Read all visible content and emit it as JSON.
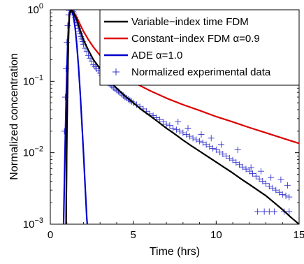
{
  "chart_data": {
    "type": "line",
    "xlabel": "Time (hrs)",
    "ylabel": "Normalized concentration",
    "xlim": [
      0,
      15
    ],
    "ylim": [
      0.001,
      1
    ],
    "yscale": "log",
    "x_ticks": [
      "0",
      "5",
      "10",
      "15"
    ],
    "x_tick_values": [
      0,
      5,
      10,
      15
    ],
    "y_ticks": [
      {
        "base": "10",
        "exp": "0",
        "value": 1
      },
      {
        "base": "10",
        "exp": "−1",
        "value": 0.1
      },
      {
        "base": "10",
        "exp": "−2",
        "value": 0.01
      },
      {
        "base": "10",
        "exp": "−3",
        "value": 0.001
      }
    ],
    "grid": false,
    "legend_position": "top-right",
    "series": [
      {
        "name": "Variable−index time FDM",
        "color": "#000000",
        "style": "line",
        "points": [
          [
            0.95,
            0.001
          ],
          [
            1.0,
            0.02
          ],
          [
            1.05,
            0.12
          ],
          [
            1.1,
            0.45
          ],
          [
            1.15,
            0.85
          ],
          [
            1.25,
            1.0
          ],
          [
            1.4,
            0.92
          ],
          [
            1.6,
            0.72
          ],
          [
            1.8,
            0.52
          ],
          [
            2.0,
            0.38
          ],
          [
            2.3,
            0.27
          ],
          [
            2.6,
            0.2
          ],
          [
            3.0,
            0.15
          ],
          [
            3.5,
            0.105
          ],
          [
            4.0,
            0.08
          ],
          [
            4.5,
            0.062
          ],
          [
            5.0,
            0.05
          ],
          [
            5.5,
            0.04
          ],
          [
            6.0,
            0.033
          ],
          [
            6.5,
            0.027
          ],
          [
            7.0,
            0.022
          ],
          [
            7.5,
            0.0183
          ],
          [
            8.0,
            0.015
          ],
          [
            8.5,
            0.0125
          ],
          [
            9.0,
            0.0105
          ],
          [
            9.5,
            0.0088
          ],
          [
            10.0,
            0.0074
          ],
          [
            10.5,
            0.0062
          ],
          [
            11.0,
            0.0052
          ],
          [
            11.5,
            0.0043
          ],
          [
            12.0,
            0.0036
          ],
          [
            12.5,
            0.003
          ],
          [
            13.0,
            0.0025
          ],
          [
            13.5,
            0.002
          ],
          [
            14.0,
            0.0016
          ],
          [
            14.5,
            0.00125
          ],
          [
            15.0,
            0.001
          ]
        ]
      },
      {
        "name": "Constant−index FDM α=0.9",
        "color": "#dd0000",
        "style": "line",
        "points": [
          [
            0.95,
            0.001
          ],
          [
            1.0,
            0.02
          ],
          [
            1.05,
            0.12
          ],
          [
            1.1,
            0.45
          ],
          [
            1.15,
            0.85
          ],
          [
            1.25,
            1.0
          ],
          [
            1.4,
            0.93
          ],
          [
            1.6,
            0.78
          ],
          [
            1.8,
            0.62
          ],
          [
            2.0,
            0.5
          ],
          [
            2.3,
            0.38
          ],
          [
            2.6,
            0.3
          ],
          [
            3.0,
            0.23
          ],
          [
            3.5,
            0.175
          ],
          [
            4.0,
            0.14
          ],
          [
            4.5,
            0.115
          ],
          [
            5.0,
            0.097
          ],
          [
            6.0,
            0.074
          ],
          [
            7.0,
            0.058
          ],
          [
            8.0,
            0.047
          ],
          [
            9.0,
            0.039
          ],
          [
            10.0,
            0.032
          ],
          [
            11.0,
            0.027
          ],
          [
            12.0,
            0.0225
          ],
          [
            13.0,
            0.019
          ],
          [
            14.0,
            0.016
          ],
          [
            15.0,
            0.0135
          ]
        ]
      },
      {
        "name": "ADE α=1.0",
        "color": "#0000cc",
        "style": "line",
        "points": [
          [
            0.8,
            0.001
          ],
          [
            0.85,
            0.004
          ],
          [
            0.9,
            0.015
          ],
          [
            0.95,
            0.05
          ],
          [
            1.0,
            0.15
          ],
          [
            1.05,
            0.35
          ],
          [
            1.1,
            0.6
          ],
          [
            1.15,
            0.83
          ],
          [
            1.2,
            0.97
          ],
          [
            1.25,
            1.0
          ],
          [
            1.3,
            0.97
          ],
          [
            1.4,
            0.8
          ],
          [
            1.5,
            0.55
          ],
          [
            1.6,
            0.32
          ],
          [
            1.7,
            0.16
          ],
          [
            1.8,
            0.07
          ],
          [
            1.9,
            0.027
          ],
          [
            2.0,
            0.01
          ],
          [
            2.1,
            0.0034
          ],
          [
            2.2,
            0.0012
          ],
          [
            2.23,
            0.001
          ]
        ]
      },
      {
        "name": "Normalized experimental data",
        "color": "#3333cc",
        "style": "plus",
        "points": [
          [
            0.85,
            0.02
          ],
          [
            0.9,
            0.06
          ],
          [
            0.95,
            0.15
          ],
          [
            1.0,
            0.35
          ],
          [
            1.05,
            0.6
          ],
          [
            1.1,
            0.85
          ],
          [
            1.15,
            0.97
          ],
          [
            1.2,
            1.0
          ],
          [
            1.25,
            1.0
          ],
          [
            1.3,
            0.98
          ],
          [
            1.35,
            0.95
          ],
          [
            1.4,
            0.9
          ],
          [
            1.45,
            0.85
          ],
          [
            1.5,
            0.78
          ],
          [
            1.55,
            0.72
          ],
          [
            1.6,
            0.66
          ],
          [
            1.65,
            0.6
          ],
          [
            1.7,
            0.55
          ],
          [
            1.75,
            0.5
          ],
          [
            1.8,
            0.46
          ],
          [
            1.85,
            0.42
          ],
          [
            1.9,
            0.39
          ],
          [
            1.95,
            0.36
          ],
          [
            2.0,
            0.33
          ],
          [
            2.1,
            0.29
          ],
          [
            2.2,
            0.26
          ],
          [
            2.3,
            0.23
          ],
          [
            2.4,
            0.21
          ],
          [
            2.5,
            0.19
          ],
          [
            2.6,
            0.17
          ],
          [
            2.7,
            0.16
          ],
          [
            2.8,
            0.15
          ],
          [
            2.9,
            0.14
          ],
          [
            3.0,
            0.13
          ],
          [
            3.1,
            0.12
          ],
          [
            3.2,
            0.115
          ],
          [
            3.3,
            0.108
          ],
          [
            3.4,
            0.1
          ],
          [
            3.5,
            0.095
          ],
          [
            3.6,
            0.09
          ],
          [
            3.7,
            0.086
          ],
          [
            3.8,
            0.082
          ],
          [
            3.9,
            0.078
          ],
          [
            4.0,
            0.075
          ],
          [
            4.1,
            0.072
          ],
          [
            4.2,
            0.069
          ],
          [
            4.3,
            0.066
          ],
          [
            4.4,
            0.063
          ],
          [
            4.5,
            0.06
          ],
          [
            4.6,
            0.058
          ],
          [
            4.7,
            0.056
          ],
          [
            4.8,
            0.054
          ],
          [
            4.9,
            0.052
          ],
          [
            5.0,
            0.05
          ],
          [
            5.2,
            0.047
          ],
          [
            5.4,
            0.044
          ],
          [
            5.6,
            0.041
          ],
          [
            5.8,
            0.038
          ],
          [
            6.0,
            0.035
          ],
          [
            6.2,
            0.033
          ],
          [
            6.4,
            0.031
          ],
          [
            6.6,
            0.029
          ],
          [
            6.8,
            0.027
          ],
          [
            7.0,
            0.025
          ],
          [
            7.2,
            0.024
          ],
          [
            7.4,
            0.022
          ],
          [
            7.6,
            0.021
          ],
          [
            7.8,
            0.02
          ],
          [
            8.0,
            0.019
          ],
          [
            8.2,
            0.018
          ],
          [
            8.4,
            0.017
          ],
          [
            8.6,
            0.016
          ],
          [
            8.8,
            0.0152
          ],
          [
            9.0,
            0.0145
          ],
          [
            9.2,
            0.0138
          ],
          [
            9.4,
            0.013
          ],
          [
            9.6,
            0.0122
          ],
          [
            9.8,
            0.0115
          ],
          [
            10.0,
            0.011
          ],
          [
            10.2,
            0.0102
          ],
          [
            10.4,
            0.0096
          ],
          [
            10.6,
            0.009
          ],
          [
            10.8,
            0.0084
          ],
          [
            11.0,
            0.0079
          ],
          [
            11.2,
            0.0073
          ],
          [
            11.4,
            0.0068
          ],
          [
            11.6,
            0.0063
          ],
          [
            11.8,
            0.0059
          ],
          [
            12.0,
            0.0055
          ],
          [
            12.2,
            0.0051
          ],
          [
            12.4,
            0.0047
          ],
          [
            12.6,
            0.0043
          ],
          [
            12.8,
            0.004
          ],
          [
            13.0,
            0.0037
          ],
          [
            13.2,
            0.0034
          ],
          [
            13.4,
            0.0032
          ],
          [
            13.6,
            0.003
          ],
          [
            13.8,
            0.0028
          ],
          [
            14.0,
            0.0026
          ],
          [
            14.2,
            0.0025
          ],
          [
            14.4,
            0.0024
          ],
          [
            7.7,
            0.027
          ],
          [
            8.3,
            0.022
          ],
          [
            9.1,
            0.018
          ],
          [
            9.7,
            0.016
          ],
          [
            10.3,
            0.013
          ],
          [
            11.3,
            0.011
          ],
          [
            12.1,
            0.0062
          ],
          [
            12.7,
            0.0055
          ],
          [
            13.3,
            0.0045
          ],
          [
            13.9,
            0.0042
          ],
          [
            14.3,
            0.0035
          ],
          [
            12.5,
            0.0015
          ],
          [
            12.9,
            0.0015
          ],
          [
            13.2,
            0.0015
          ],
          [
            13.5,
            0.0015
          ],
          [
            14.1,
            0.0015
          ],
          [
            14.4,
            0.0015
          ]
        ]
      }
    ]
  }
}
